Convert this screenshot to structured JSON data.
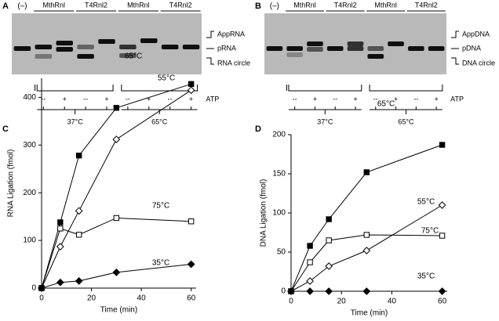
{
  "gels": [
    {
      "label": "A",
      "control": "(–)",
      "groups": [
        "MthRnl",
        "T4Rnl2",
        "MthRnl",
        "T4Rnl2"
      ],
      "species": [
        "AppRNA",
        "pRNA",
        "RNA circle"
      ],
      "atp": [
        "--",
        "+",
        "--",
        "+",
        "--",
        "+",
        "--",
        "+"
      ],
      "atp_label": "ATP",
      "temperatures": [
        "37°C",
        "65°C"
      ]
    },
    {
      "label": "B",
      "control": "(–)",
      "groups": [
        "MthRnl",
        "T4Rnl2",
        "MthRnl",
        "T4Rnl2"
      ],
      "species": [
        "AppDNA",
        "pDNA",
        "DNA circle"
      ],
      "atp": [
        "--",
        "+",
        "--",
        "+",
        "--",
        "+",
        "--",
        "+"
      ],
      "atp_label": "ATP",
      "temperatures": [
        "37°C",
        "65°C"
      ]
    }
  ],
  "chart_data": [
    {
      "type": "line",
      "label": "C",
      "xlabel": "Time (min)",
      "ylabel": "RNA Ligation (fmol)",
      "x": [
        0,
        7.5,
        15,
        30,
        60
      ],
      "xlim": [
        0,
        62
      ],
      "ylim": [
        0,
        440
      ],
      "xticks": [
        0,
        20,
        40,
        60
      ],
      "yticks": [
        0,
        100,
        200,
        300,
        400
      ],
      "series": [
        {
          "name": "65°C",
          "color": "#000000",
          "marker": "square-filled",
          "values": [
            0,
            138,
            278,
            378,
            428
          ]
        },
        {
          "name": "55°C",
          "color": "#000000",
          "marker": "diamond-open",
          "values": [
            0,
            87,
            162,
            312,
            415
          ]
        },
        {
          "name": "75°C",
          "color": "#000000",
          "marker": "square-open",
          "values": [
            0,
            125,
            112,
            147,
            140
          ]
        },
        {
          "name": "35°C",
          "color": "#000000",
          "marker": "diamond-filled",
          "values": [
            0,
            12,
            15,
            33,
            50
          ]
        }
      ]
    },
    {
      "type": "line",
      "label": "D",
      "xlabel": "Time (min)",
      "ylabel": "DNA Ligation (fmol)",
      "x": [
        0,
        7.5,
        15,
        30,
        60
      ],
      "xlim": [
        0,
        62
      ],
      "ylim": [
        0,
        200
      ],
      "xticks": [
        0,
        20,
        40,
        60
      ],
      "yticks": [
        0,
        50,
        100,
        150,
        200
      ],
      "series": [
        {
          "name": "65°C",
          "color": "#000000",
          "marker": "square-filled",
          "values": [
            0,
            58,
            92,
            152,
            187
          ]
        },
        {
          "name": "55°C",
          "color": "#000000",
          "marker": "diamond-open",
          "values": [
            0,
            13,
            32,
            52,
            110
          ]
        },
        {
          "name": "75°C",
          "color": "#000000",
          "marker": "square-open",
          "values": [
            0,
            37,
            65,
            72,
            71
          ]
        },
        {
          "name": "35°C",
          "color": "#000000",
          "marker": "diamond-filled",
          "values": [
            0,
            0,
            0,
            0,
            0
          ]
        }
      ]
    }
  ]
}
